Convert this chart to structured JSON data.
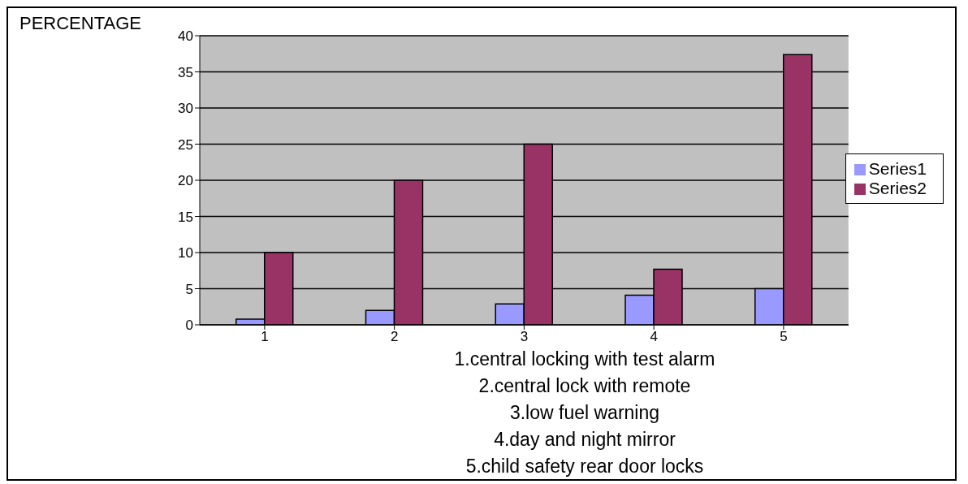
{
  "chart_data": {
    "type": "bar",
    "ylabel": "PERCENTAGE",
    "categories": [
      "1",
      "2",
      "3",
      "4",
      "5"
    ],
    "series": [
      {
        "name": "Series1",
        "color": "#9999ff",
        "values": [
          0.8,
          2,
          2.9,
          4.1,
          5
        ]
      },
      {
        "name": "Series2",
        "color": "#993366",
        "values": [
          10,
          20,
          25,
          7.7,
          37.4
        ]
      }
    ],
    "ylim": [
      0,
      40
    ],
    "yticks": [
      0,
      5,
      10,
      15,
      20,
      25,
      30,
      35,
      40
    ],
    "grid": "y",
    "legend": "right",
    "annotations": [
      "1.central locking with test alarm",
      "2.central lock with remote",
      "3.low fuel warning",
      "4.day and night mirror",
      "5.child safety rear door locks"
    ]
  }
}
